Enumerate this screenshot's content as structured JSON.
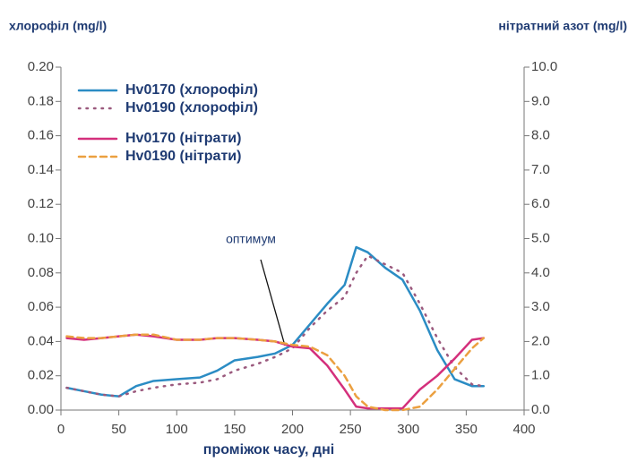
{
  "chart_data": {
    "type": "line",
    "y_label": "хлорофіл (mg/l)",
    "y2_label": "нітратний азот (mg/l)",
    "x_label": "проміжок часу, дні",
    "annotation": "оптимум",
    "x": [
      5,
      20,
      35,
      50,
      65,
      80,
      100,
      120,
      135,
      150,
      170,
      185,
      200,
      215,
      230,
      245,
      255,
      265,
      280,
      295,
      310,
      325,
      340,
      355,
      365
    ],
    "series": [
      {
        "name": "Hv0170 (хлорофіл)",
        "color": "#2b8cc4",
        "style": "solid",
        "axis": "y",
        "values": [
          0.013,
          0.011,
          0.009,
          0.008,
          0.014,
          0.017,
          0.018,
          0.019,
          0.023,
          0.029,
          0.031,
          0.033,
          0.038,
          0.05,
          0.062,
          0.073,
          0.095,
          0.092,
          0.083,
          0.076,
          0.058,
          0.035,
          0.018,
          0.014,
          0.014
        ]
      },
      {
        "name": "Hv0190 (хлорофіл)",
        "color": "#9b5a7e",
        "style": "dotted",
        "axis": "y",
        "values": [
          0.013,
          0.011,
          0.009,
          0.008,
          0.011,
          0.013,
          0.015,
          0.016,
          0.018,
          0.023,
          0.027,
          0.031,
          0.036,
          0.048,
          0.058,
          0.066,
          0.08,
          0.09,
          0.085,
          0.08,
          0.062,
          0.042,
          0.025,
          0.015,
          0.014
        ]
      },
      {
        "name": "Hv0170 (нітрати)",
        "color": "#d4307c",
        "style": "solid",
        "axis": "y2",
        "values": [
          2.1,
          2.05,
          2.1,
          2.15,
          2.2,
          2.15,
          2.05,
          2.05,
          2.1,
          2.1,
          2.05,
          2.0,
          1.85,
          1.8,
          1.3,
          0.6,
          0.1,
          0.05,
          0.05,
          0.05,
          0.6,
          1.0,
          1.5,
          2.05,
          2.1
        ]
      },
      {
        "name": "Hv0190 (нітрати)",
        "color": "#eba040",
        "style": "dashed",
        "axis": "y2",
        "values": [
          2.15,
          2.1,
          2.1,
          2.15,
          2.2,
          2.2,
          2.05,
          2.05,
          2.1,
          2.1,
          2.05,
          2.0,
          1.9,
          1.85,
          1.6,
          1.0,
          0.4,
          0.1,
          0.0,
          0.0,
          0.1,
          0.6,
          1.2,
          1.8,
          2.1
        ]
      }
    ],
    "xlim": [
      0,
      400
    ],
    "xticks": [
      0,
      50,
      100,
      150,
      200,
      250,
      300,
      350,
      400
    ],
    "ylim": [
      0,
      0.2
    ],
    "yticks": [
      {
        "value": 0,
        "label": "0.00"
      },
      {
        "value": 0.02,
        "label": "0.02"
      },
      {
        "value": 0.04,
        "label": "0.04"
      },
      {
        "value": 0.06,
        "label": "0.06"
      },
      {
        "value": 0.08,
        "label": "0.08"
      },
      {
        "value": 0.1,
        "label": "0.10"
      },
      {
        "value": 0.12,
        "label": "0.12"
      },
      {
        "value": 0.14,
        "label": "0.14"
      },
      {
        "value": 0.16,
        "label": "0.16"
      },
      {
        "value": 0.18,
        "label": "0.18"
      },
      {
        "value": 0.2,
        "label": "0.20"
      }
    ],
    "y2lim": [
      0,
      10
    ],
    "y2ticks": [
      {
        "value": 0,
        "label": "0.0"
      },
      {
        "value": 1,
        "label": "1.0"
      },
      {
        "value": 2,
        "label": "2.0"
      },
      {
        "value": 3,
        "label": "3.0"
      },
      {
        "value": 4,
        "label": "4.0"
      },
      {
        "value": 5,
        "label": "5.0"
      },
      {
        "value": 6,
        "label": "6.0"
      },
      {
        "value": 7,
        "label": "7.0"
      },
      {
        "value": 8,
        "label": "8.0"
      },
      {
        "value": 9,
        "label": "9.0"
      },
      {
        "value": 10,
        "label": "10.0"
      }
    ]
  }
}
